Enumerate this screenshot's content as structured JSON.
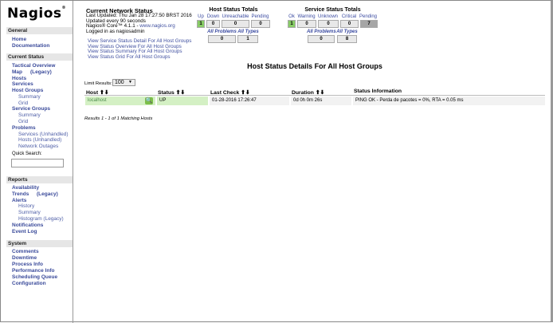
{
  "logo": "Nagios",
  "sidebar": {
    "general": {
      "title": "General",
      "items": [
        "Home",
        "Documentation"
      ]
    },
    "current_status": {
      "title": "Current Status",
      "tactical": "Tactical Overview",
      "map": "Map",
      "map_legacy": "(Legacy)",
      "hosts": "Hosts",
      "services": "Services",
      "host_groups": "Host Groups",
      "hg_summary": "Summary",
      "hg_grid": "Grid",
      "service_groups": "Service Groups",
      "sg_summary": "Summary",
      "sg_grid": "Grid",
      "problems": "Problems",
      "p_services": "Services",
      "p_services_unh": "Unhandled",
      "p_hosts": "Hosts",
      "p_hosts_unh": "Unhandled",
      "p_outages": "Network Outages",
      "quick_search": "Quick Search:"
    },
    "reports": {
      "title": "Reports",
      "availability": "Availability",
      "trends": "Trends",
      "trends_legacy": "(Legacy)",
      "alerts": "Alerts",
      "history": "History",
      "summary": "Summary",
      "histogram": "Histogram (Legacy)",
      "notifications": "Notifications",
      "event_log": "Event Log"
    },
    "system": {
      "title": "System",
      "items": [
        "Comments",
        "Downtime",
        "Process Info",
        "Performance Info",
        "Scheduling Queue",
        "Configuration"
      ]
    }
  },
  "network_status": {
    "title": "Current Network Status",
    "last_updated": "Last Updated: Thu Jan 28 17:27:50 BRST 2016",
    "interval": "Updated every 90 seconds",
    "core": "Nagios® Core™ 4.1.1 - ",
    "core_link": "www.nagios.org",
    "logged_in": "Logged in as nagiosadmin",
    "links": [
      "View Service Status Detail For All Host Groups",
      "View Status Overview For All Host Groups",
      "View Status Summary For All Host Groups",
      "View Status Grid For All Host Groups"
    ]
  },
  "host_totals": {
    "title": "Host Status Totals",
    "labels": [
      "Up",
      "Down",
      "Unreachable",
      "Pending"
    ],
    "values": [
      "1",
      "0",
      "0",
      "0"
    ],
    "all_problems": "All Problems",
    "all_types": "All Types",
    "problems_value": "0",
    "types_value": "1"
  },
  "service_totals": {
    "title": "Service Status Totals",
    "labels": [
      "Ok",
      "Warning",
      "Unknown",
      "Critical",
      "Pending"
    ],
    "values": [
      "1",
      "0",
      "0",
      "0",
      "7"
    ],
    "all_problems": "All Problems",
    "all_types": "All Types",
    "problems_value": "0",
    "types_value": "8"
  },
  "main": {
    "title": "Host Status Details For All Host Groups",
    "limit_label": "Limit Results:",
    "limit_value": "100",
    "columns": [
      "Host",
      "Status",
      "Last Check",
      "Duration",
      "Status Information"
    ],
    "rows": [
      {
        "host": "localhost",
        "status": "UP",
        "last_check": "01-28-2016 17:26:47",
        "duration": "0d 0h 0m 26s",
        "info": "PING OK - Perda de pacotes = 0%, RTA = 0.05 ms"
      }
    ],
    "results": "Results 1 - 1 of 1 Matching Hosts"
  },
  "colors": {
    "up": "#88cc66",
    "ok_row": "#d4f0c4",
    "pending": "#a6a6a6",
    "link": "#3a4a9a"
  }
}
